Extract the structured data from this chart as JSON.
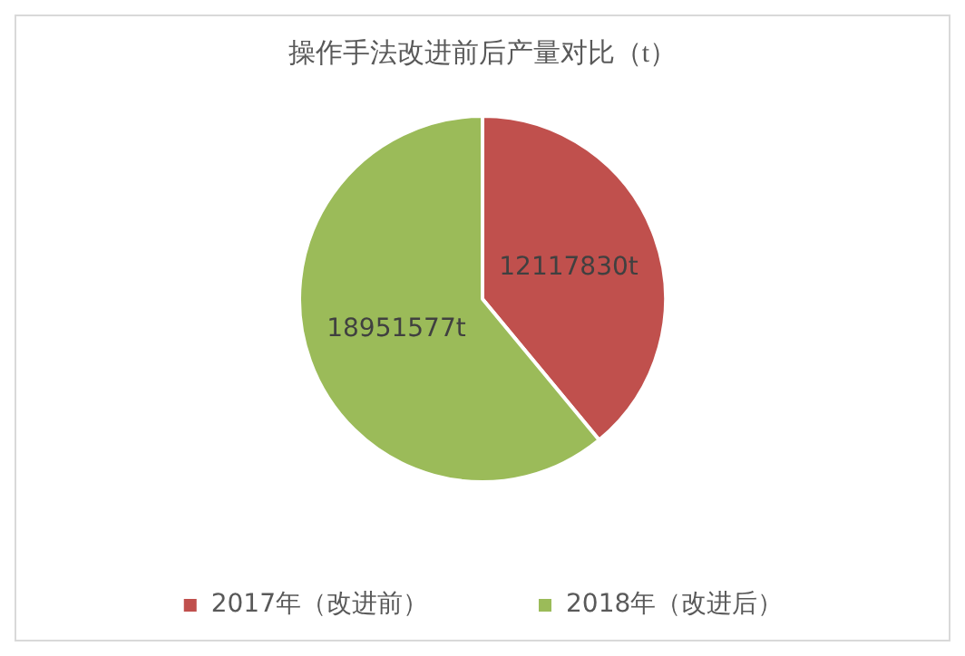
{
  "chart_data": {
    "type": "pie",
    "title": "操作手法改进前后产量对比（t）",
    "categories": [
      "2017年（改进前）",
      "2018年（改进后）"
    ],
    "values": [
      12117830,
      18951577
    ],
    "colors": [
      "#c0504d",
      "#9bbb59"
    ],
    "value_labels": [
      "12117830t",
      "18951577t"
    ],
    "legend": "bottom"
  }
}
